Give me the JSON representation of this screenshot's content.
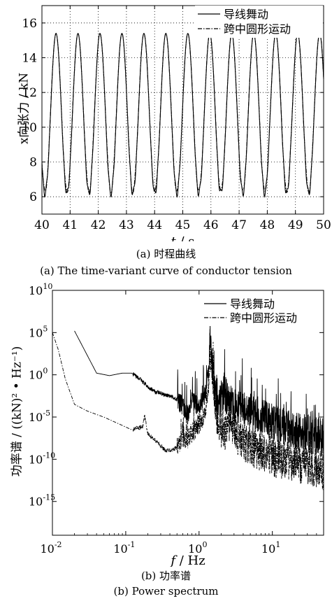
{
  "chart_data": [
    {
      "type": "line",
      "xlabel_var": "t",
      "xlabel_unit": "/ s",
      "ylabel": "x向张力 / kN",
      "xlim": [
        40,
        50
      ],
      "ylim": [
        5,
        17
      ],
      "xticks": [
        40,
        41,
        42,
        43,
        44,
        45,
        46,
        47,
        48,
        49,
        50
      ],
      "yticks": [
        6,
        8,
        10,
        12,
        14,
        16
      ],
      "grid": "dotted",
      "legend_position": "top-right",
      "series": [
        {
          "name": "导线舞动",
          "style": "solid",
          "min": 6.2,
          "max": 15.4,
          "period": 0.78,
          "phase": 40.5
        },
        {
          "name": "跨中圆形运动",
          "style": "dash-dot",
          "min": 6.3,
          "max": 15.4,
          "period": 0.78,
          "phase": 40.5
        }
      ],
      "caption_cn": "(a)  时程曲线",
      "caption_en": "(a)  The time-variant curve of conductor tension"
    },
    {
      "type": "line",
      "xscale": "log",
      "yscale": "log",
      "xlabel_var": "f",
      "xlabel_unit": "/ Hz",
      "ylabel": "功率谱 / ((kN)² • Hz⁻¹)",
      "xlim": [
        0.01,
        50
      ],
      "ylim_exp": [
        -19,
        10
      ],
      "xtick_exps": [
        -2,
        -1,
        0,
        1
      ],
      "ytick_exps": [
        10,
        5,
        0,
        -5,
        -10,
        -15
      ],
      "tick_base": "10",
      "legend_position": "top-right",
      "series": [
        {
          "name": "导线舞动",
          "style": "solid",
          "points": [
            [
              0.02,
              5.2
            ],
            [
              0.04,
              0.2
            ],
            [
              0.06,
              -0.1
            ],
            [
              0.09,
              0.2
            ],
            [
              0.12,
              0.2
            ],
            [
              0.16,
              -0.6
            ],
            [
              0.2,
              -1.4
            ],
            [
              0.25,
              -2.0
            ],
            [
              0.3,
              -2.2
            ],
            [
              0.4,
              -2.5
            ],
            [
              0.5,
              -2.9
            ],
            [
              0.6,
              -3.6
            ],
            [
              0.7,
              -4.8
            ],
            [
              0.8,
              -3.2
            ],
            [
              1.0,
              -3.8
            ],
            [
              1.2,
              -2.6
            ],
            [
              1.35,
              0.5
            ],
            [
              1.45,
              3.2
            ],
            [
              1.55,
              0.0
            ],
            [
              1.8,
              -3.5
            ],
            [
              2.2,
              -2.2
            ],
            [
              2.7,
              -3.2
            ],
            [
              3.5,
              -3.8
            ],
            [
              5,
              -4.4
            ],
            [
              8,
              -5.2
            ],
            [
              12,
              -5.8
            ],
            [
              20,
              -6.5
            ],
            [
              35,
              -7.2
            ],
            [
              50,
              -7.5
            ]
          ]
        },
        {
          "name": "跨中圆形运动",
          "style": "dash-dot",
          "points": [
            [
              0.01,
              5.0
            ],
            [
              0.012,
              3.0
            ],
            [
              0.015,
              -0.5
            ],
            [
              0.02,
              -3.5
            ],
            [
              0.03,
              -4.3
            ],
            [
              0.05,
              -5.0
            ],
            [
              0.08,
              -5.8
            ],
            [
              0.12,
              -6.5
            ],
            [
              0.17,
              -6.2
            ],
            [
              0.18,
              -4.7
            ],
            [
              0.2,
              -7.0
            ],
            [
              0.25,
              -7.7
            ],
            [
              0.3,
              -8.4
            ],
            [
              0.35,
              -9.0
            ],
            [
              0.42,
              -8.9
            ],
            [
              0.5,
              -8.6
            ],
            [
              0.6,
              -7.8
            ],
            [
              0.7,
              -7.6
            ],
            [
              0.8,
              -6.8
            ],
            [
              1.0,
              -6.0
            ],
            [
              1.2,
              -4.8
            ],
            [
              1.35,
              -1.0
            ],
            [
              1.45,
              2.5
            ],
            [
              1.55,
              -1.5
            ],
            [
              1.8,
              -5.5
            ],
            [
              2.2,
              -7.0
            ],
            [
              2.7,
              -5.5
            ],
            [
              3.5,
              -7.8
            ],
            [
              5,
              -8.5
            ],
            [
              8,
              -9.5
            ],
            [
              12,
              -10.0
            ],
            [
              20,
              -10.5
            ],
            [
              35,
              -11.0
            ],
            [
              50,
              -11.5
            ]
          ]
        }
      ],
      "caption_cn": "(b)  功率谱",
      "caption_en": "(b)  Power spectrum"
    }
  ]
}
